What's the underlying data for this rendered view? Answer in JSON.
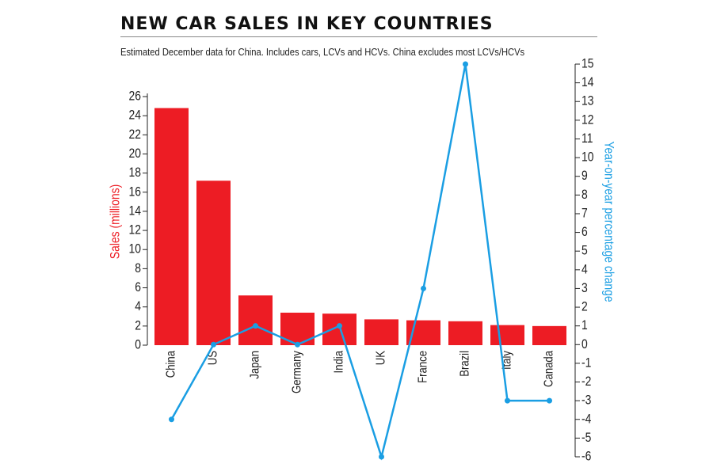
{
  "header": {
    "title": "NEW CAR SALES IN KEY COUNTRIES",
    "subtitle": "Estimated December data for China. Includes cars, LCVs and HCVs. China excludes most LCVs/HCVs"
  },
  "colors": {
    "bar": "#ed1c24",
    "line": "#1a9ee3",
    "axis": "#222222"
  },
  "chart_data": {
    "type": "bar",
    "title": "NEW CAR SALES IN KEY COUNTRIES",
    "subtitle": "Estimated December data for China. Includes cars, LCVs and HCVs. China excludes most LCVs/HCVs",
    "categories": [
      "China",
      "US",
      "Japan",
      "Germany",
      "India",
      "UK",
      "France",
      "Brazil",
      "Italy",
      "Canada"
    ],
    "series": [
      {
        "name": "Sales (millions)",
        "type": "bar",
        "axis": "left",
        "values": [
          24.8,
          17.2,
          5.2,
          3.4,
          3.3,
          2.7,
          2.6,
          2.5,
          2.1,
          2.0
        ]
      },
      {
        "name": "Year-on-year percentage change",
        "type": "line",
        "axis": "right",
        "values": [
          -4,
          0,
          1,
          0,
          1,
          -6,
          3,
          15,
          -3,
          -3
        ]
      }
    ],
    "ylabel": "Sales (millions)",
    "ylim": [
      0,
      26
    ],
    "yticks": [
      0,
      2,
      4,
      6,
      8,
      10,
      12,
      14,
      16,
      18,
      20,
      22,
      24,
      26
    ],
    "y2label": "Year-on-year percentage change",
    "y2lim": [
      -6,
      15
    ],
    "y2ticks": [
      -6,
      -5,
      -4,
      -3,
      -2,
      -1,
      0,
      1,
      2,
      3,
      4,
      5,
      6,
      7,
      8,
      9,
      10,
      11,
      12,
      13,
      14,
      15
    ],
    "grid": false,
    "legend": "none"
  }
}
